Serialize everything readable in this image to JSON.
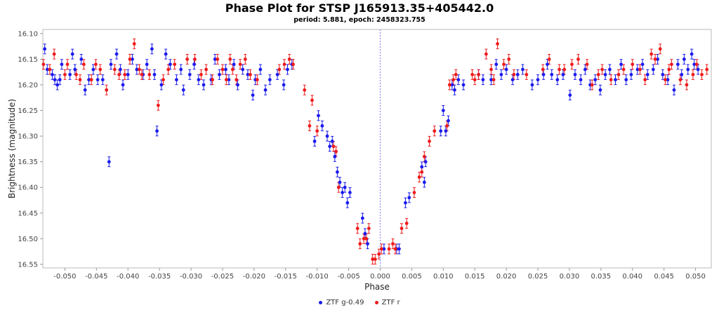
{
  "chart_data": {
    "type": "scatter",
    "title": "Phase Plot for STSP J165913.35+405442.0",
    "subtitle": "period: 5.881, epoch: 2458323.755",
    "xlabel": "Phase",
    "ylabel": "Brightness (magnitude)",
    "xlim": [
      -0.0535,
      0.0525
    ],
    "ylim": [
      16.557,
      16.092
    ],
    "y_inverted": true,
    "x_ticks": [
      -0.05,
      -0.045,
      -0.04,
      -0.035,
      -0.03,
      -0.025,
      -0.02,
      -0.015,
      -0.01,
      -0.005,
      0.0,
      0.005,
      0.01,
      0.015,
      0.02,
      0.025,
      0.03,
      0.035,
      0.04,
      0.045,
      0.05
    ],
    "x_tick_labels": [
      "-0.050",
      "-0.045",
      "-0.040",
      "-0.035",
      "-0.030",
      "-0.025",
      "-0.020",
      "-0.015",
      "-0.010",
      "-0.005",
      "0.000",
      "0.005",
      "0.010",
      "0.015",
      "0.020",
      "0.025",
      "0.030",
      "0.035",
      "0.040",
      "0.045",
      "0.050"
    ],
    "y_ticks": [
      16.1,
      16.15,
      16.2,
      16.25,
      16.3,
      16.35,
      16.4,
      16.45,
      16.5,
      16.55
    ],
    "y_tick_labels": [
      "16.10",
      "16.15",
      "16.20",
      "16.25",
      "16.30",
      "16.35",
      "16.40",
      "16.45",
      "16.50",
      "16.55"
    ],
    "reference_line_x": 0.0,
    "legend_position": "bottom-center",
    "grid": false,
    "series": [
      {
        "name": "ZTF g-0.49",
        "color": "#1a1aee",
        "points": [
          [
            -0.0532,
            16.13
          ],
          [
            -0.0528,
            16.17
          ],
          [
            -0.052,
            16.18
          ],
          [
            -0.0516,
            16.19
          ],
          [
            -0.0512,
            16.2
          ],
          [
            -0.0508,
            16.19
          ],
          [
            -0.0505,
            16.16
          ],
          [
            -0.0492,
            16.18
          ],
          [
            -0.0488,
            16.14
          ],
          [
            -0.0484,
            16.17
          ],
          [
            -0.0474,
            16.15
          ],
          [
            -0.0468,
            16.21
          ],
          [
            -0.0462,
            16.19
          ],
          [
            -0.0455,
            16.17
          ],
          [
            -0.0448,
            16.19
          ],
          [
            -0.044,
            16.19
          ],
          [
            -0.043,
            16.35
          ],
          [
            -0.0427,
            16.16
          ],
          [
            -0.0418,
            16.14
          ],
          [
            -0.0412,
            16.17
          ],
          [
            -0.0408,
            16.2
          ],
          [
            -0.04,
            16.18
          ],
          [
            -0.0393,
            16.15
          ],
          [
            -0.0386,
            16.17
          ],
          [
            -0.0376,
            16.18
          ],
          [
            -0.037,
            16.16
          ],
          [
            -0.0362,
            16.13
          ],
          [
            -0.0358,
            16.18
          ],
          [
            -0.0354,
            16.29
          ],
          [
            -0.0347,
            16.2
          ],
          [
            -0.034,
            16.14
          ],
          [
            -0.0333,
            16.16
          ],
          [
            -0.0323,
            16.19
          ],
          [
            -0.0316,
            16.17
          ],
          [
            -0.0312,
            16.21
          ],
          [
            -0.0302,
            16.18
          ],
          [
            -0.0295,
            16.16
          ],
          [
            -0.0288,
            16.19
          ],
          [
            -0.028,
            16.2
          ],
          [
            -0.0268,
            16.19
          ],
          [
            -0.0262,
            16.15
          ],
          [
            -0.0255,
            16.18
          ],
          [
            -0.0245,
            16.17
          ],
          [
            -0.024,
            16.19
          ],
          [
            -0.0232,
            16.16
          ],
          [
            -0.0226,
            16.2
          ],
          [
            -0.0218,
            16.17
          ],
          [
            -0.021,
            16.18
          ],
          [
            -0.0202,
            16.22
          ],
          [
            -0.0198,
            16.19
          ],
          [
            -0.019,
            16.17
          ],
          [
            -0.0182,
            16.21
          ],
          [
            -0.0175,
            16.19
          ],
          [
            -0.0163,
            16.18
          ],
          [
            -0.0153,
            16.2
          ],
          [
            -0.0147,
            16.17
          ],
          [
            -0.014,
            16.16
          ],
          [
            -0.0104,
            16.31
          ],
          [
            -0.0098,
            16.26
          ],
          [
            -0.0092,
            16.28
          ],
          [
            -0.0084,
            16.3
          ],
          [
            -0.008,
            16.32
          ],
          [
            -0.0076,
            16.31
          ],
          [
            -0.0072,
            16.34
          ],
          [
            -0.0068,
            16.37
          ],
          [
            -0.0064,
            16.39
          ],
          [
            -0.006,
            16.41
          ],
          [
            -0.0056,
            16.4
          ],
          [
            -0.0052,
            16.43
          ],
          [
            -0.0048,
            16.41
          ],
          [
            -0.0028,
            16.46
          ],
          [
            -0.0024,
            16.49
          ],
          [
            -0.002,
            16.51
          ],
          [
            0.0006,
            16.52
          ],
          [
            0.0026,
            16.52
          ],
          [
            0.003,
            16.52
          ],
          [
            0.004,
            16.43
          ],
          [
            0.0046,
            16.42
          ],
          [
            0.0066,
            16.36
          ],
          [
            0.007,
            16.39
          ],
          [
            0.0072,
            16.35
          ],
          [
            0.0096,
            16.29
          ],
          [
            0.01,
            16.25
          ],
          [
            0.0104,
            16.29
          ],
          [
            0.0108,
            16.27
          ],
          [
            0.0114,
            16.2
          ],
          [
            0.0118,
            16.21
          ],
          [
            0.0124,
            16.19
          ],
          [
            0.0132,
            16.2
          ],
          [
            0.0156,
            16.18
          ],
          [
            0.0163,
            16.19
          ],
          [
            0.0176,
            16.19
          ],
          [
            0.0184,
            16.16
          ],
          [
            0.0192,
            16.18
          ],
          [
            0.02,
            16.17
          ],
          [
            0.021,
            16.19
          ],
          [
            0.0218,
            16.18
          ],
          [
            0.0226,
            16.17
          ],
          [
            0.0241,
            16.2
          ],
          [
            0.025,
            16.19
          ],
          [
            0.0259,
            16.18
          ],
          [
            0.0265,
            16.16
          ],
          [
            0.0272,
            16.18
          ],
          [
            0.0281,
            16.19
          ],
          [
            0.029,
            16.18
          ],
          [
            0.0301,
            16.22
          ],
          [
            0.0309,
            16.18
          ],
          [
            0.0318,
            16.19
          ],
          [
            0.0325,
            16.17
          ],
          [
            0.0333,
            16.2
          ],
          [
            0.0341,
            16.19
          ],
          [
            0.0349,
            16.21
          ],
          [
            0.0357,
            16.18
          ],
          [
            0.0364,
            16.17
          ],
          [
            0.0373,
            16.19
          ],
          [
            0.0382,
            16.16
          ],
          [
            0.039,
            16.19
          ],
          [
            0.0398,
            16.18
          ],
          [
            0.0408,
            16.17
          ],
          [
            0.0416,
            16.16
          ],
          [
            0.0424,
            16.18
          ],
          [
            0.0433,
            16.17
          ],
          [
            0.044,
            16.15
          ],
          [
            0.0448,
            16.18
          ],
          [
            0.0456,
            16.19
          ],
          [
            0.0466,
            16.21
          ],
          [
            0.0472,
            16.16
          ],
          [
            0.0478,
            16.18
          ],
          [
            0.0482,
            16.15
          ],
          [
            0.0488,
            16.17
          ],
          [
            0.0494,
            16.14
          ],
          [
            0.0498,
            16.16
          ],
          [
            0.0504,
            16.17
          ]
        ]
      },
      {
        "name": "ZTF r",
        "color": "#ee1a1a",
        "points": [
          [
            -0.0534,
            16.16
          ],
          [
            -0.0524,
            16.17
          ],
          [
            -0.0517,
            16.14
          ],
          [
            -0.05,
            16.18
          ],
          [
            -0.0496,
            16.16
          ],
          [
            -0.0482,
            16.18
          ],
          [
            -0.0476,
            16.19
          ],
          [
            -0.047,
            16.16
          ],
          [
            -0.0458,
            16.19
          ],
          [
            -0.0451,
            16.16
          ],
          [
            -0.0444,
            16.17
          ],
          [
            -0.0434,
            16.21
          ],
          [
            -0.0421,
            16.17
          ],
          [
            -0.0414,
            16.18
          ],
          [
            -0.0405,
            16.18
          ],
          [
            -0.0397,
            16.15
          ],
          [
            -0.039,
            16.12
          ],
          [
            -0.0382,
            16.17
          ],
          [
            -0.0378,
            16.18
          ],
          [
            -0.0366,
            16.18
          ],
          [
            -0.0352,
            16.24
          ],
          [
            -0.0344,
            16.19
          ],
          [
            -0.0336,
            16.17
          ],
          [
            -0.0326,
            16.16
          ],
          [
            -0.0306,
            16.15
          ],
          [
            -0.0294,
            16.15
          ],
          [
            -0.0284,
            16.18
          ],
          [
            -0.0276,
            16.17
          ],
          [
            -0.0266,
            16.19
          ],
          [
            -0.0258,
            16.15
          ],
          [
            -0.025,
            16.17
          ],
          [
            -0.0244,
            16.19
          ],
          [
            -0.0238,
            16.15
          ],
          [
            -0.0234,
            16.17
          ],
          [
            -0.0228,
            16.19
          ],
          [
            -0.0222,
            16.16
          ],
          [
            -0.0214,
            16.15
          ],
          [
            -0.0206,
            16.18
          ],
          [
            -0.0195,
            16.19
          ],
          [
            -0.016,
            16.17
          ],
          [
            -0.0152,
            16.16
          ],
          [
            -0.0144,
            16.15
          ],
          [
            -0.0138,
            16.16
          ],
          [
            -0.012,
            16.21
          ],
          [
            -0.0112,
            16.28
          ],
          [
            -0.0108,
            16.23
          ],
          [
            -0.01,
            16.29
          ],
          [
            -0.0074,
            16.32
          ],
          [
            -0.007,
            16.33
          ],
          [
            -0.0066,
            16.4
          ],
          [
            -0.0036,
            16.48
          ],
          [
            -0.0032,
            16.51
          ],
          [
            -0.0026,
            16.5
          ],
          [
            -0.0022,
            16.5
          ],
          [
            -0.0018,
            16.48
          ],
          [
            -0.0012,
            16.54
          ],
          [
            -0.0008,
            16.54
          ],
          [
            -0.0002,
            16.53
          ],
          [
            0.0002,
            16.52
          ],
          [
            0.0014,
            16.52
          ],
          [
            0.002,
            16.51
          ],
          [
            0.0024,
            16.52
          ],
          [
            0.0034,
            16.48
          ],
          [
            0.0042,
            16.47
          ],
          [
            0.0054,
            16.41
          ],
          [
            0.0062,
            16.38
          ],
          [
            0.0066,
            16.37
          ],
          [
            0.007,
            16.34
          ],
          [
            0.0078,
            16.31
          ],
          [
            0.0086,
            16.29
          ],
          [
            0.0106,
            16.28
          ],
          [
            0.011,
            16.2
          ],
          [
            0.0116,
            16.19
          ],
          [
            0.012,
            16.18
          ],
          [
            0.0146,
            16.18
          ],
          [
            0.015,
            16.19
          ],
          [
            0.0156,
            16.18
          ],
          [
            0.0168,
            16.14
          ],
          [
            0.0176,
            16.17
          ],
          [
            0.018,
            16.19
          ],
          [
            0.0186,
            16.12
          ],
          [
            0.0196,
            16.16
          ],
          [
            0.0204,
            16.15
          ],
          [
            0.0212,
            16.18
          ],
          [
            0.0232,
            16.18
          ],
          [
            0.0258,
            16.17
          ],
          [
            0.0268,
            16.15
          ],
          [
            0.0284,
            16.17
          ],
          [
            0.0292,
            16.17
          ],
          [
            0.0304,
            16.16
          ],
          [
            0.0314,
            16.15
          ],
          [
            0.0328,
            16.16
          ],
          [
            0.0336,
            16.2
          ],
          [
            0.0346,
            16.18
          ],
          [
            0.0352,
            16.17
          ],
          [
            0.0366,
            16.19
          ],
          [
            0.0378,
            16.18
          ],
          [
            0.0386,
            16.17
          ],
          [
            0.04,
            16.16
          ],
          [
            0.0412,
            16.17
          ],
          [
            0.042,
            16.19
          ],
          [
            0.043,
            16.14
          ],
          [
            0.0436,
            16.15
          ],
          [
            0.0444,
            16.13
          ],
          [
            0.0452,
            16.19
          ],
          [
            0.0458,
            16.17
          ],
          [
            0.0462,
            16.16
          ],
          [
            0.0476,
            16.19
          ],
          [
            0.0486,
            16.2
          ],
          [
            0.0496,
            16.18
          ],
          [
            0.0502,
            16.16
          ],
          [
            0.051,
            16.18
          ],
          [
            0.0518,
            16.17
          ]
        ]
      }
    ]
  }
}
